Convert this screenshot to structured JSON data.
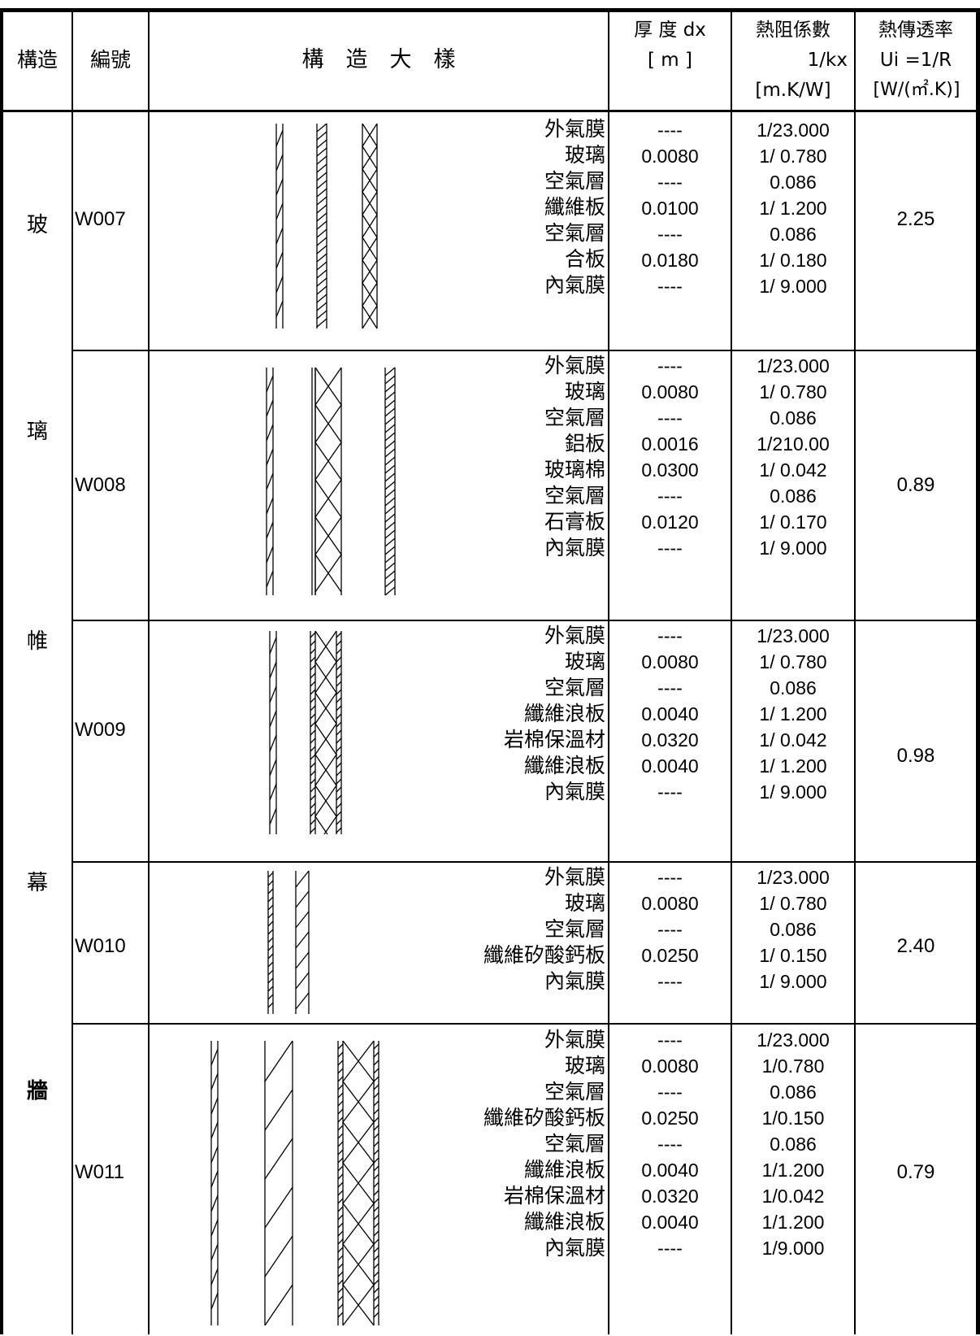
{
  "header": {
    "col_structure": "構造",
    "col_code": "編號",
    "col_detail": "構　造　大　樣",
    "col_thickness_1": "厚 度 dx",
    "col_thickness_2": "[ m ]",
    "col_resistance_1": "熱阻係數",
    "col_resistance_2": "1/kx",
    "col_resistance_3": "[m.K/W]",
    "col_u_1": "熱傳透率",
    "col_u_2": "Ui =1/R",
    "col_u_3": "[W/(㎡.K)]"
  },
  "structure_label": [
    "玻",
    "璃",
    "帷",
    "幕",
    "牆"
  ],
  "rows": [
    {
      "code": "W007",
      "layers": "外氣膜\n玻璃\n空氣層\n纖維板\n空氣層\n合板\n內氣膜",
      "thickness": "----\n0.0080\n----\n0.0100\n----\n0.0180\n----",
      "resistance": "1/23.000\n1/ 0.780\n0.086\n1/ 1.200\n0.086\n1/ 0.180\n1/ 9.000",
      "u_value": "2.25"
    },
    {
      "code": "W008",
      "layers": "外氣膜\n玻璃\n空氣層\n鋁板\n玻璃棉\n空氣層\n石膏板\n內氣膜",
      "thickness": "----\n0.0080\n----\n0.0016\n0.0300\n----\n0.0120\n----",
      "resistance": "1/23.000\n1/ 0.780\n0.086\n1/210.00\n1/ 0.042\n0.086\n1/ 0.170\n1/ 9.000",
      "u_value": "0.89"
    },
    {
      "code": "W009",
      "layers": "外氣膜\n玻璃\n空氣層\n纖維浪板\n岩棉保溫材\n纖維浪板\n內氣膜",
      "thickness": "----\n0.0080\n----\n0.0040\n0.0320\n0.0040\n----",
      "resistance": "1/23.000\n1/ 0.780\n0.086\n1/ 1.200\n1/ 0.042\n1/ 1.200\n1/ 9.000",
      "u_value": "0.98"
    },
    {
      "code": "W010",
      "layers": "外氣膜\n玻璃\n空氣層\n纖維矽酸鈣板\n內氣膜",
      "thickness": "----\n0.0080\n----\n0.0250\n----",
      "resistance": "1/23.000\n1/ 0.780\n0.086\n1/ 0.150\n1/ 9.000",
      "u_value": "2.40"
    },
    {
      "code": "W011",
      "layers": "外氣膜\n玻璃\n空氣層\n纖維矽酸鈣板\n空氣層\n纖維浪板\n岩棉保溫材\n纖維浪板\n內氣膜",
      "thickness": "----\n0.0080\n----\n0.0250\n----\n0.0040\n0.0320\n0.0040\n----",
      "resistance": "1/23.000\n1/0.780\n0.086\n1/0.150\n0.086\n1/1.200\n1/0.042\n1/1.200\n1/9.000",
      "u_value": "0.79"
    }
  ]
}
